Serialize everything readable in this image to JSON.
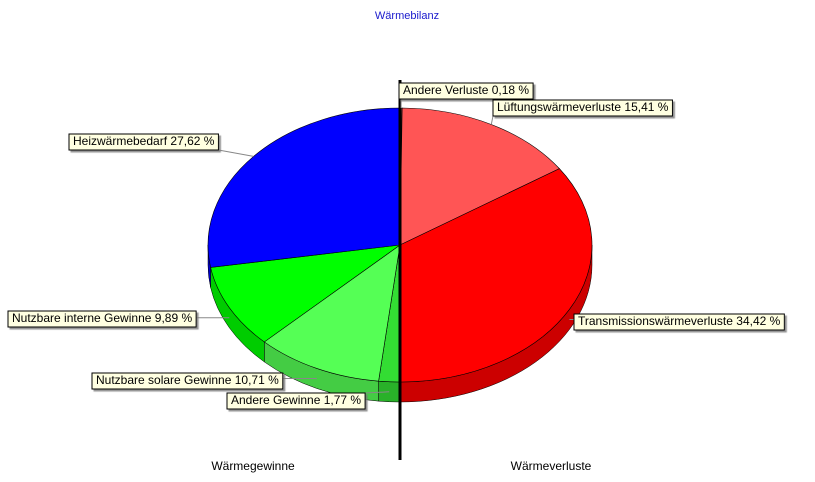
{
  "chart_data": {
    "type": "pie3d",
    "title": "Wärmebilanz",
    "left_label": "Wärmegewinne",
    "right_label": "Wärmeverluste",
    "categories": [
      "Andere Verluste",
      "Lüftungswärmeverluste",
      "Transmissionswärmeverluste",
      "Andere Gewinne",
      "Nutzbare solare Gewinne",
      "Nutzbare interne Gewinne",
      "Heizwärmebedarf"
    ],
    "values": [
      0.18,
      15.41,
      34.42,
      1.77,
      10.71,
      9.89,
      27.62
    ],
    "value_labels": [
      "0,18 %",
      "15,41 %",
      "34,42 %",
      "1,77 %",
      "10,71 %",
      "9,89 %",
      "27,62 %"
    ],
    "colors": [
      "#ff6666",
      "#ff5555",
      "#ff0000",
      "#33dd33",
      "#55ff55",
      "#00ff00",
      "#0000ff"
    ]
  }
}
